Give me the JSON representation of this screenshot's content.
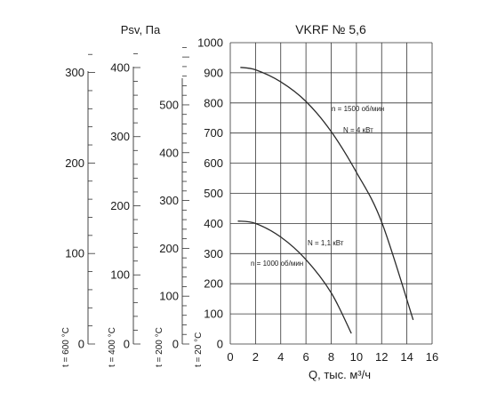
{
  "chart_data": {
    "type": "line",
    "title": "VKRF № 5,6",
    "pressure_label": "Psv, Па",
    "xlabel": "Q, тыс. м³/ч",
    "x_ticks": [
      0,
      2,
      4,
      6,
      8,
      10,
      12,
      14,
      16
    ],
    "xlim": [
      0,
      16
    ],
    "grid": true,
    "y_axes": [
      {
        "name": "t = 20 °C",
        "ylim": [
          0,
          1000
        ],
        "ticks": [
          0,
          100,
          200,
          300,
          400,
          500,
          600,
          700,
          800,
          900,
          1000
        ]
      },
      {
        "name": "t = 200 °C",
        "ylim": [
          0,
          630
        ],
        "ticks": [
          0,
          100,
          200,
          300,
          400,
          500
        ]
      },
      {
        "name": "t = 400 °C",
        "ylim": [
          0,
          436
        ],
        "ticks": [
          0,
          100,
          200,
          300,
          400
        ]
      },
      {
        "name": "t = 600 °C",
        "ylim": [
          0,
          333
        ],
        "ticks": [
          0,
          100,
          200,
          300
        ]
      }
    ],
    "series": [
      {
        "name": "n = 1500 об/мин",
        "power": "N = 4 кВт",
        "x": [
          0.8,
          2,
          4,
          6,
          8,
          10,
          12,
          14.5
        ],
        "y": [
          918,
          910,
          870,
          805,
          705,
          570,
          405,
          80
        ]
      },
      {
        "name": "n = 1000 об/мин",
        "power": "N = 1,1 кВт",
        "x": [
          0.6,
          2,
          4,
          6,
          8,
          9.6
        ],
        "y": [
          408,
          400,
          355,
          280,
          170,
          35
        ]
      }
    ]
  },
  "style": {
    "line_color": "#2b2b2b",
    "grid_color": "#333333"
  }
}
